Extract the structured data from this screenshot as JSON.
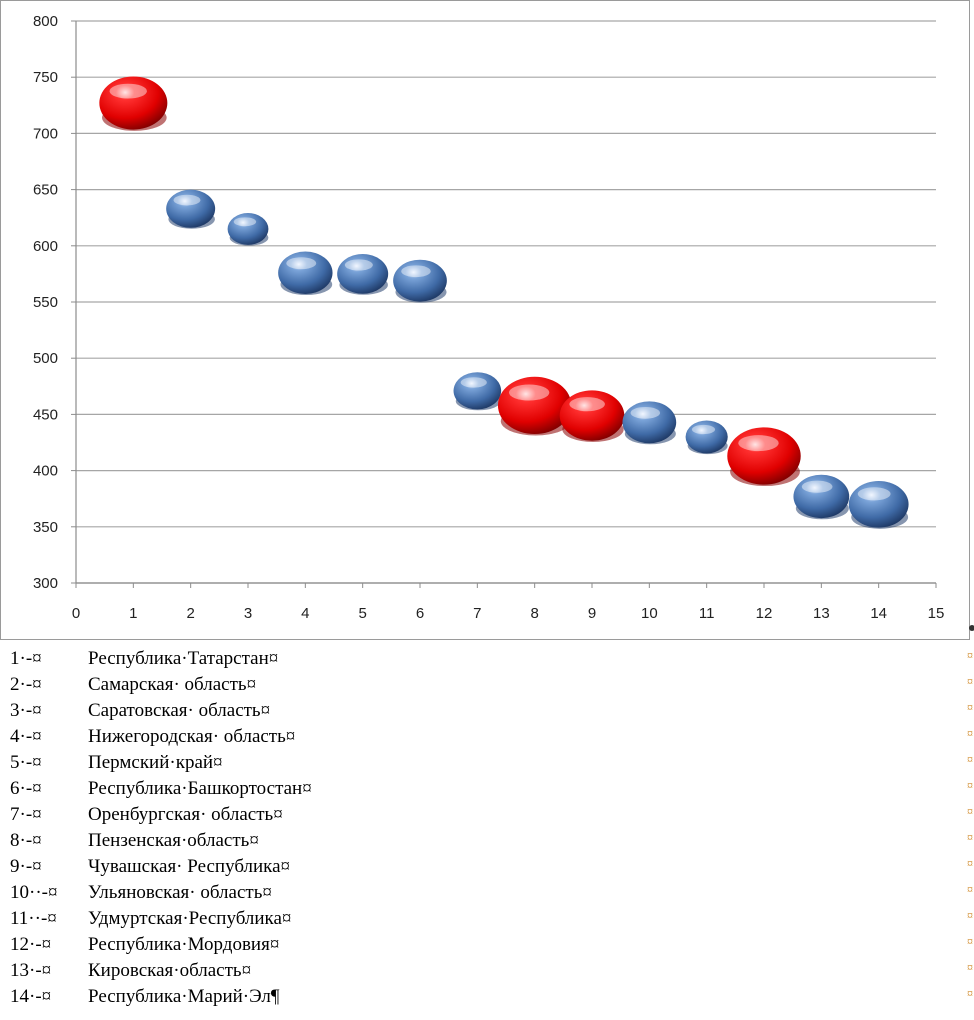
{
  "chart_data": {
    "type": "scatter",
    "title": "",
    "xlabel": "",
    "ylabel": "",
    "xlim": [
      0,
      15
    ],
    "ylim": [
      300,
      800
    ],
    "xticks": [
      "0",
      "1",
      "2",
      "3",
      "4",
      "5",
      "6",
      "7",
      "8",
      "9",
      "10",
      "11",
      "12",
      "13",
      "14",
      "15"
    ],
    "yticks": [
      "300",
      "350",
      "400",
      "450",
      "500",
      "550",
      "600",
      "650",
      "700",
      "750",
      "800"
    ],
    "grid": "horizontal",
    "colors": {
      "highlight": "#e60000",
      "normal": "#4a76b0"
    },
    "points": [
      {
        "x": 1,
        "y": 727,
        "size": 1.0,
        "color": "highlight"
      },
      {
        "x": 2,
        "y": 633,
        "size": 0.72,
        "color": "normal"
      },
      {
        "x": 3,
        "y": 615,
        "size": 0.6,
        "color": "normal"
      },
      {
        "x": 4,
        "y": 576,
        "size": 0.8,
        "color": "normal"
      },
      {
        "x": 5,
        "y": 575,
        "size": 0.75,
        "color": "normal"
      },
      {
        "x": 6,
        "y": 569,
        "size": 0.79,
        "color": "normal"
      },
      {
        "x": 7,
        "y": 471,
        "size": 0.7,
        "color": "normal"
      },
      {
        "x": 8,
        "y": 458,
        "size": 1.08,
        "color": "highlight"
      },
      {
        "x": 9,
        "y": 449,
        "size": 0.95,
        "color": "highlight"
      },
      {
        "x": 10,
        "y": 443,
        "size": 0.79,
        "color": "normal"
      },
      {
        "x": 11,
        "y": 430,
        "size": 0.62,
        "color": "normal"
      },
      {
        "x": 12,
        "y": 413,
        "size": 1.08,
        "color": "highlight"
      },
      {
        "x": 13,
        "y": 377,
        "size": 0.82,
        "color": "normal"
      },
      {
        "x": 14,
        "y": 370,
        "size": 0.88,
        "color": "normal"
      }
    ]
  },
  "legend": [
    {
      "num": "1·-¤",
      "name": "Республика·Татарстан¤"
    },
    {
      "num": "2·-¤",
      "name": "Самарская· область¤"
    },
    {
      "num": "3·-¤",
      "name": "Саратовская· область¤"
    },
    {
      "num": "4·-¤",
      "name": "Нижегородская· область¤"
    },
    {
      "num": "5·-¤",
      "name": "Пермский·край¤"
    },
    {
      "num": "6·-¤",
      "name": "Республика·Башкортостан¤"
    },
    {
      "num": "7·-¤",
      "name": "Оренбургская· область¤"
    },
    {
      "num": "8·-¤",
      "name": "Пензенская·область¤"
    },
    {
      "num": "9·-¤",
      "name": "Чувашская· Республика¤"
    },
    {
      "num": "10··-¤",
      "name": "Ульяновская· область¤"
    },
    {
      "num": "11··-¤",
      "name": "Удмуртская·Республика¤"
    },
    {
      "num": "12·-¤",
      "name": "Республика·Мордовия¤"
    },
    {
      "num": "13·-¤",
      "name": "Кировская·область¤"
    },
    {
      "num": "14·-¤",
      "name": "Республика·Марий·Эл¶"
    }
  ],
  "right_marker": "¤"
}
